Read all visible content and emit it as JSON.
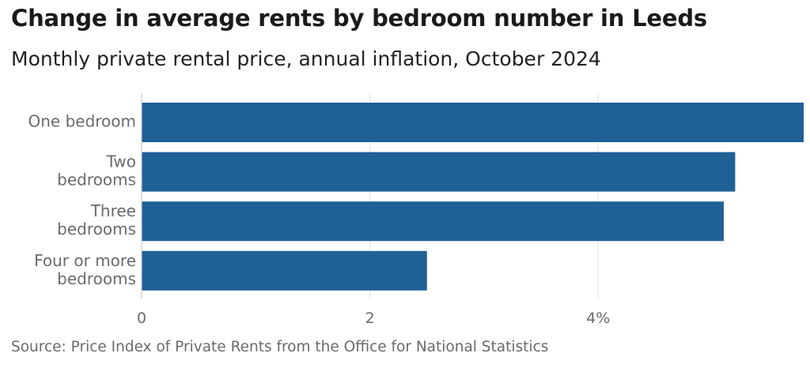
{
  "header": {
    "title": "Change in average rents by bedroom number in Leeds",
    "subtitle": "Monthly private rental price, annual inflation, October 2024"
  },
  "footer": {
    "source": "Source: Price Index of Private Rents from the Office for National Statistics"
  },
  "colors": {
    "bar": "#1f6095",
    "gridline": "#e3e3e3",
    "axis": "#c8c8c8",
    "label": "#6b6b6b"
  },
  "chart_data": {
    "type": "bar",
    "orientation": "horizontal",
    "categories": [
      [
        "One bedroom"
      ],
      [
        "Two",
        "bedrooms"
      ],
      [
        "Three",
        "bedrooms"
      ],
      [
        "Four or more",
        "bedrooms"
      ]
    ],
    "values": [
      5.8,
      5.2,
      5.1,
      2.5
    ],
    "xlim": [
      0,
      5.8
    ],
    "xticks": [
      {
        "value": 0,
        "label": "0"
      },
      {
        "value": 2,
        "label": "2"
      },
      {
        "value": 4,
        "label": "4%"
      }
    ],
    "grid": true
  }
}
